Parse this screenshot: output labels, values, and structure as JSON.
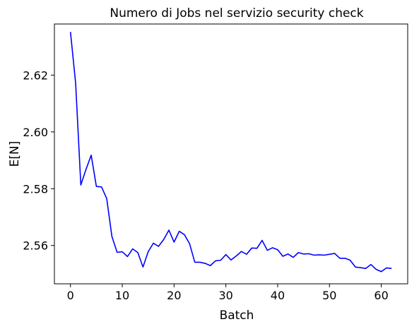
{
  "chart_data": {
    "type": "line",
    "title": "Numero di Jobs nel servizio security check",
    "xlabel": "Batch",
    "ylabel": "E[N]",
    "xlim": [
      -3.1,
      65.1
    ],
    "ylim": [
      2.5465,
      2.638
    ],
    "xticks": [
      0,
      10,
      20,
      30,
      40,
      50,
      60
    ],
    "yticks": [
      2.56,
      2.58,
      2.6,
      2.62
    ],
    "ytick_labels": [
      "2.56",
      "2.58",
      "2.60",
      "2.62"
    ],
    "grid": false,
    "legend": "none",
    "series": [
      {
        "color": "#0000ff",
        "x": [
          0,
          1,
          2,
          3,
          4,
          5,
          6,
          7,
          8,
          9,
          10,
          11,
          12,
          13,
          14,
          15,
          16,
          17,
          18,
          19,
          20,
          21,
          22,
          23,
          24,
          25,
          26,
          27,
          28,
          29,
          30,
          31,
          32,
          33,
          34,
          35,
          36,
          37,
          38,
          39,
          40,
          41,
          42,
          43,
          44,
          45,
          46,
          47,
          48,
          49,
          50,
          51,
          52,
          53,
          54,
          55,
          56,
          57,
          58,
          59,
          60,
          61,
          62
        ],
        "y": [
          2.6352,
          2.6171,
          2.5813,
          2.5868,
          2.5918,
          2.5808,
          2.5806,
          2.5765,
          2.5632,
          2.5576,
          2.5578,
          2.5561,
          2.5588,
          2.5575,
          2.5524,
          2.5578,
          2.5608,
          2.5597,
          2.5621,
          2.5654,
          2.5612,
          2.565,
          2.5638,
          2.5606,
          2.5541,
          2.5541,
          2.5537,
          2.5529,
          2.5546,
          2.5548,
          2.5568,
          2.5549,
          2.5563,
          2.5579,
          2.5569,
          2.5591,
          2.559,
          2.5618,
          2.5583,
          2.5592,
          2.5585,
          2.5562,
          2.557,
          2.5558,
          2.5575,
          2.557,
          2.5571,
          2.5566,
          2.5567,
          2.5566,
          2.5569,
          2.5572,
          2.5555,
          2.5555,
          2.5548,
          2.5524,
          2.5522,
          2.5519,
          2.5533,
          2.5516,
          2.5508,
          2.5521,
          2.5519
        ]
      }
    ]
  }
}
